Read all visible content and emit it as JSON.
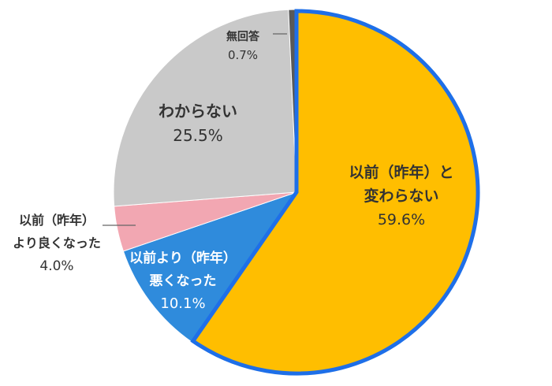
{
  "chart_data": {
    "type": "pie",
    "categories": [
      "以前（昨年）と変わらない",
      "以前より（昨年）悪くなった",
      "以前（昨年）より良くなった",
      "わからない",
      "無回答"
    ],
    "values": [
      59.6,
      10.1,
      4.0,
      25.5,
      0.7
    ],
    "value_labels": [
      "59.6%",
      "10.1%",
      "4.0%",
      "25.5%",
      "0.7%"
    ],
    "label_lines": [
      [
        "以前（昨年）と",
        "変わらない"
      ],
      [
        "以前より（昨年）",
        "悪くなった"
      ],
      [
        "以前（昨年）",
        "より良くなった"
      ],
      [
        "わからない"
      ],
      [
        "無回答"
      ]
    ],
    "colors": [
      "#FFBE00",
      "#2F8BDC",
      "#F2A7B2",
      "#C9C9C9",
      "#595959"
    ],
    "highlight_color": "#1E6FE8",
    "start": "12 o'clock",
    "direction": "clockwise",
    "legend": "none"
  }
}
